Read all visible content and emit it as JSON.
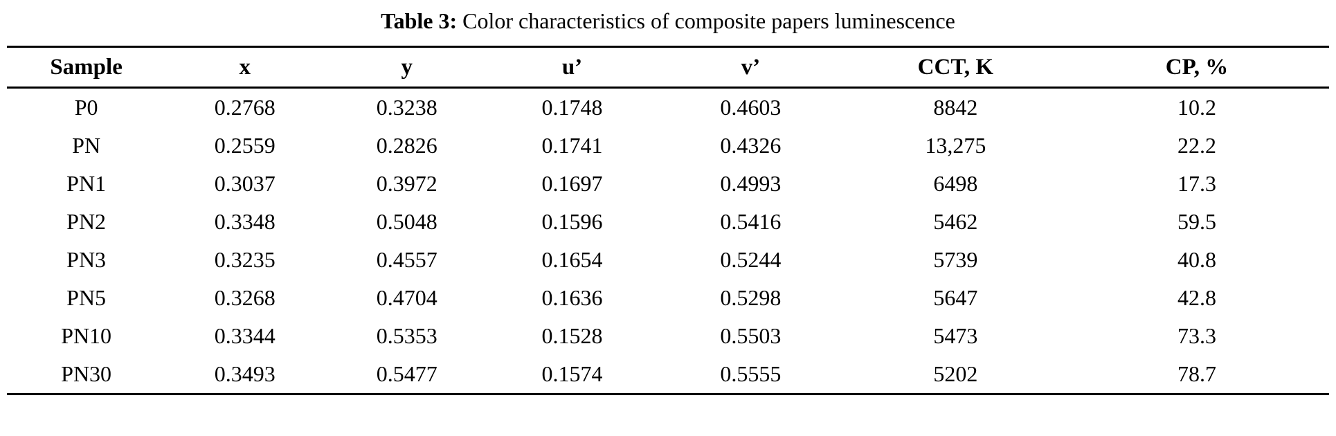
{
  "caption": {
    "number": "Table 3:",
    "text": " Color characteristics of composite papers luminescence"
  },
  "table": {
    "columns": [
      "Sample",
      "x",
      "y",
      "u’",
      "v’",
      "CCT, K",
      "CP, %"
    ],
    "rows": [
      [
        "P0",
        "0.2768",
        "0.3238",
        "0.1748",
        "0.4603",
        "8842",
        "10.2"
      ],
      [
        "PN",
        "0.2559",
        "0.2826",
        "0.1741",
        "0.4326",
        "13,275",
        "22.2"
      ],
      [
        "PN1",
        "0.3037",
        "0.3972",
        "0.1697",
        "0.4993",
        "6498",
        "17.3"
      ],
      [
        "PN2",
        "0.3348",
        "0.5048",
        "0.1596",
        "0.5416",
        "5462",
        "59.5"
      ],
      [
        "PN3",
        "0.3235",
        "0.4557",
        "0.1654",
        "0.5244",
        "5739",
        "40.8"
      ],
      [
        "PN5",
        "0.3268",
        "0.4704",
        "0.1636",
        "0.5298",
        "5647",
        "42.8"
      ],
      [
        "PN10",
        "0.3344",
        "0.5353",
        "0.1528",
        "0.5503",
        "5473",
        "73.3"
      ],
      [
        "PN30",
        "0.3493",
        "0.5477",
        "0.1574",
        "0.5555",
        "5202",
        "78.7"
      ]
    ]
  }
}
